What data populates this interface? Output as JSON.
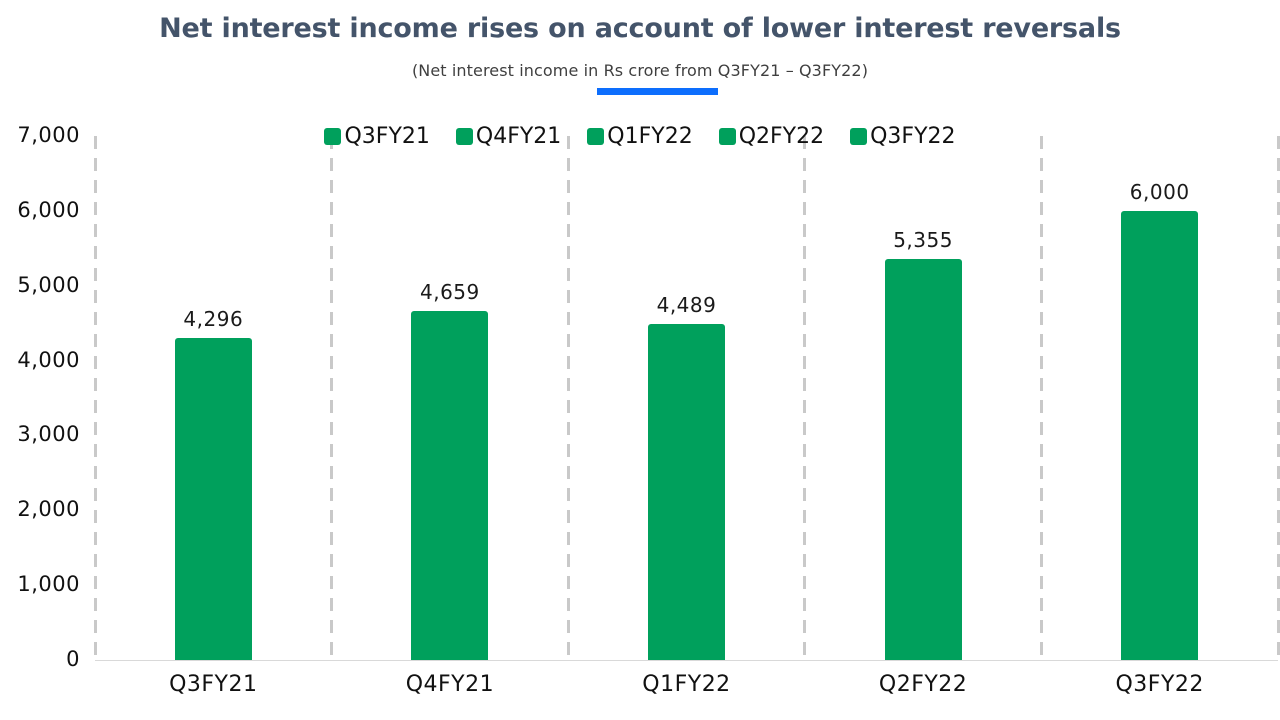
{
  "title": "Net interest income rises on account of lower interest reversals",
  "subtitle": "(Net interest income in Rs crore from Q3FY21 – Q3FY22)",
  "colors": {
    "title": "#44546A",
    "subtitle": "#3F3F3F",
    "bar": "#00A05C",
    "accent_underline": "#0D6EFD",
    "gridline": "#C9C9C9",
    "axis_line": "#D9D9D9",
    "text": "#111111"
  },
  "chart_data": {
    "type": "bar",
    "title": "Net interest income rises on account of lower interest reversals",
    "subtitle": "(Net interest income in Rs crore from Q3FY21 – Q3FY22)",
    "categories": [
      "Q3FY21",
      "Q4FY21",
      "Q1FY22",
      "Q2FY22",
      "Q3FY22"
    ],
    "values": [
      4296,
      4659,
      4489,
      5355,
      6000
    ],
    "value_labels": [
      "4,296",
      "4,659",
      "4,489",
      "5,355",
      "6,000"
    ],
    "xlabel": "",
    "ylabel": "",
    "ylim": [
      0,
      7000
    ],
    "ytick_step": 1000,
    "ytick_labels": [
      "0",
      "1,000",
      "2,000",
      "3,000",
      "4,000",
      "5,000",
      "6,000",
      "7,000"
    ],
    "legend": [
      "Q3FY21",
      "Q4FY21",
      "Q1FY22",
      "Q2FY22",
      "Q3FY22"
    ],
    "legend_position": "top-center",
    "grid": "vertical-dashed",
    "single_series_color": "#00A05C"
  }
}
